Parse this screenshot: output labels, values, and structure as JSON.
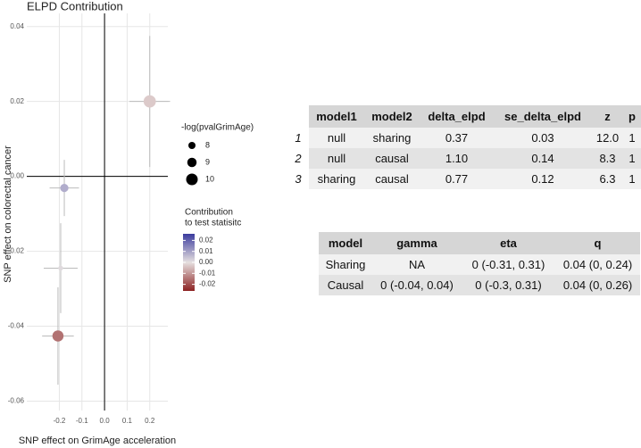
{
  "chart_data": {
    "type": "scatter",
    "title": "ELPD Contribution",
    "xlabel": "SNP effect on GrimAge acceleration",
    "ylabel": "SNP effect on colorectal cancer",
    "x": [
      0.2,
      -0.178,
      -0.194,
      -0.206
    ],
    "y": [
      0.02,
      -0.0031,
      -0.0245,
      -0.0426
    ],
    "xerr": [
      0.09,
      0.065,
      0.075,
      0.07
    ],
    "yerr": [
      0.0175,
      0.0075,
      0.012,
      0.013
    ],
    "size": [
      10.3,
      8.5,
      7,
      9.8
    ],
    "contribution": [
      -0.003,
      0.008,
      0.001,
      -0.015
    ],
    "xlim": [
      -0.344,
      0.28
    ],
    "ylim": [
      -0.0625,
      0.0435
    ],
    "xticks": [
      -0.2,
      -0.1,
      {
        "value": 0,
        "label": "0.0"
      },
      0.1,
      0.2
    ],
    "yticks": [
      0.04,
      0.02,
      {
        "value": 0,
        "label": "0.00"
      },
      -0.02,
      -0.04,
      -0.06
    ],
    "grid": true,
    "zero_lines": true,
    "size_legend": {
      "title": "-log(pvalGrimAge)",
      "values": [
        8,
        9,
        10
      ]
    },
    "colorbar": {
      "title": [
        "Contribution",
        "to test statisitc"
      ],
      "lim": [
        -0.026,
        0.026
      ],
      "ticks": [
        0.02,
        0.01,
        {
          "value": 0,
          "label": "0.00"
        },
        -0.01,
        -0.02
      ],
      "colors": [
        "#8c2222",
        "#e6e0e0",
        "#3b3b9e"
      ]
    }
  },
  "tables": [
    {
      "header": [
        "model1",
        "model2",
        "delta_elpd",
        "se_delta_elpd",
        "z",
        "p"
      ],
      "row_labels": [
        "1",
        "2",
        "3"
      ],
      "rows": [
        [
          "null",
          "sharing",
          "0.37",
          "0.03",
          "12.0",
          "1"
        ],
        [
          "null",
          "causal",
          "1.10",
          "0.14",
          "8.3",
          "1"
        ],
        [
          "sharing",
          "causal",
          "0.77",
          "0.12",
          "6.3",
          "1"
        ]
      ]
    },
    {
      "header": [
        "model",
        "gamma",
        "eta",
        "q"
      ],
      "rows": [
        [
          "Sharing",
          "NA",
          "0 (-0.31, 0.31)",
          "0.04 (0, 0.24)"
        ],
        [
          "Causal",
          "0 (-0.04, 0.04)",
          "0 (-0.3, 0.31)",
          "0.04 (0, 0.26)"
        ]
      ]
    }
  ]
}
